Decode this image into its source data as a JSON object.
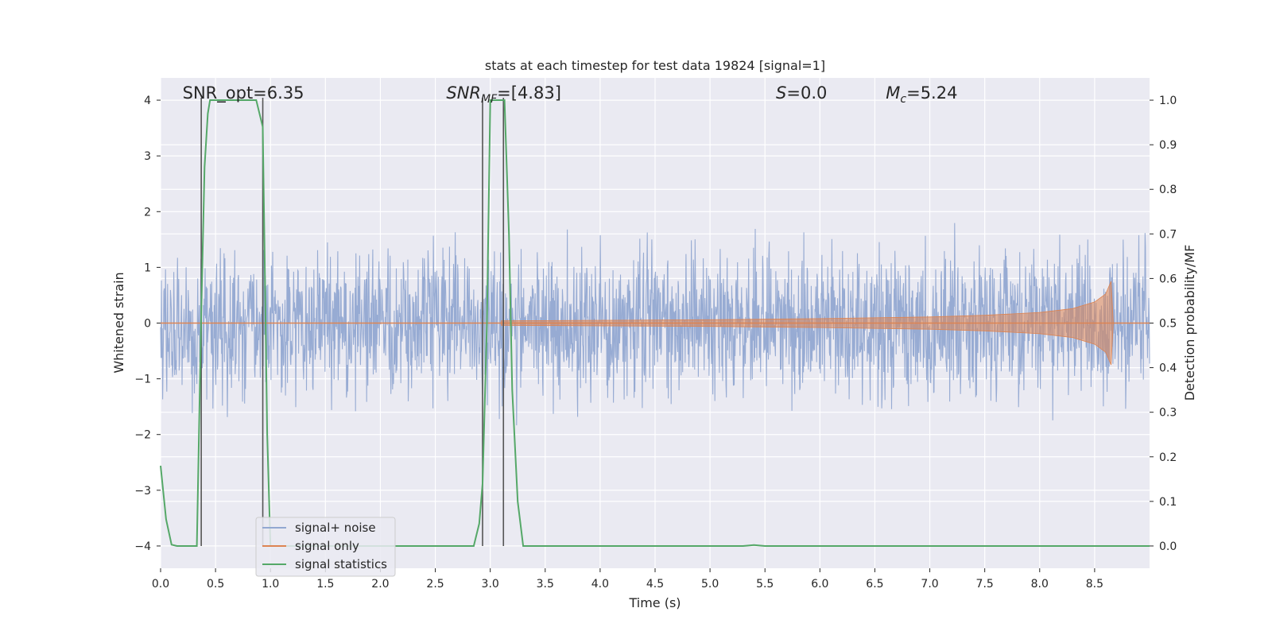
{
  "chart_data": {
    "type": "line",
    "title": "stats at each timestep for test data 19824 [signal=1]",
    "xlabel": "Time (s)",
    "ylabel_left": "Whitened strain",
    "ylabel_right": "Detection probability/MF",
    "xlim": [
      0.0,
      9.0
    ],
    "ylim_left": [
      -4.4,
      4.4
    ],
    "ylim_right": [
      -0.05,
      1.05
    ],
    "x_ticks": [
      "0.0",
      "0.5",
      "1.0",
      "1.5",
      "2.0",
      "2.5",
      "3.0",
      "3.5",
      "4.0",
      "4.5",
      "5.0",
      "5.5",
      "6.0",
      "6.5",
      "7.0",
      "7.5",
      "8.0",
      "8.5"
    ],
    "x_tick_values": [
      0.0,
      0.5,
      1.0,
      1.5,
      2.0,
      2.5,
      3.0,
      3.5,
      4.0,
      4.5,
      5.0,
      5.5,
      6.0,
      6.5,
      7.0,
      7.5,
      8.0,
      8.5
    ],
    "y_left_ticks": [
      "−4",
      "−3",
      "−2",
      "−1",
      "0",
      "1",
      "2",
      "3",
      "4"
    ],
    "y_left_tick_values": [
      -4,
      -3,
      -2,
      -1,
      0,
      1,
      2,
      3,
      4
    ],
    "y_right_ticks": [
      "0.0",
      "0.1",
      "0.2",
      "0.3",
      "0.4",
      "0.5",
      "0.6",
      "0.7",
      "0.8",
      "0.9",
      "1.0"
    ],
    "y_right_tick_values": [
      0.0,
      0.1,
      0.2,
      0.3,
      0.4,
      0.5,
      0.6,
      0.7,
      0.8,
      0.9,
      1.0
    ],
    "grid": true,
    "legend_position": "lower-left",
    "annotations": [
      {
        "text": "SNR_opt=6.35",
        "x": 0.2
      },
      {
        "text": "SNR",
        "sub": "MF",
        "suffix": "=[4.83]",
        "italic": true,
        "x": 2.6
      },
      {
        "text": "S",
        "suffix": "=0.0",
        "italic": true,
        "x": 5.6
      },
      {
        "text": "M",
        "sub": "c",
        "suffix": "=5.24",
        "italic": true,
        "x": 6.6
      }
    ],
    "vertical_lines_x": [
      0.37,
      0.93,
      2.93,
      3.12
    ],
    "series": [
      {
        "name": "signal+ noise",
        "axis": "left",
        "color": "#92a8d1",
        "description_stats": {
          "typical_amplitude": 1.6,
          "peak_amplitude": 4.0
        }
      },
      {
        "name": "signal only",
        "axis": "left",
        "color": "#dd8452",
        "envelope": [
          {
            "x": 3.1,
            "amp": 0.04
          },
          {
            "x": 4.0,
            "amp": 0.05
          },
          {
            "x": 5.0,
            "amp": 0.06
          },
          {
            "x": 6.0,
            "amp": 0.08
          },
          {
            "x": 7.0,
            "amp": 0.11
          },
          {
            "x": 7.5,
            "amp": 0.14
          },
          {
            "x": 8.0,
            "amp": 0.19
          },
          {
            "x": 8.3,
            "amp": 0.26
          },
          {
            "x": 8.5,
            "amp": 0.38
          },
          {
            "x": 8.6,
            "amp": 0.52
          },
          {
            "x": 8.65,
            "amp": 0.75
          },
          {
            "x": 8.67,
            "amp": 0.0
          }
        ]
      },
      {
        "name": "signal statistics",
        "axis": "right",
        "color": "#55a868",
        "x": [
          0.0,
          0.05,
          0.1,
          0.15,
          0.2,
          0.25,
          0.3,
          0.33,
          0.37,
          0.4,
          0.43,
          0.45,
          0.5,
          0.6,
          0.7,
          0.8,
          0.87,
          0.93,
          0.95,
          0.97,
          1.0,
          1.2,
          1.5,
          2.0,
          2.5,
          2.85,
          2.9,
          2.93,
          2.97,
          3.0,
          3.05,
          3.1,
          3.13,
          3.17,
          3.2,
          3.25,
          3.3,
          3.5,
          4.0,
          4.5,
          5.0,
          5.3,
          5.4,
          5.5,
          6.0,
          7.0,
          8.0,
          9.0
        ],
        "values": [
          0.18,
          0.06,
          0.003,
          0.0,
          0.0,
          0.0,
          0.0,
          0.0,
          0.52,
          0.85,
          0.97,
          1.0,
          1.0,
          1.0,
          1.0,
          1.0,
          1.0,
          0.94,
          0.6,
          0.25,
          0.0,
          0.0,
          0.0,
          0.0,
          0.0,
          0.0,
          0.05,
          0.14,
          0.5,
          1.0,
          1.0,
          1.0,
          1.0,
          0.7,
          0.35,
          0.1,
          0.0,
          0.0,
          0.0,
          0.0,
          0.0,
          0.0,
          0.002,
          0.0,
          0.0,
          0.0,
          0.0,
          0.0
        ]
      }
    ]
  }
}
